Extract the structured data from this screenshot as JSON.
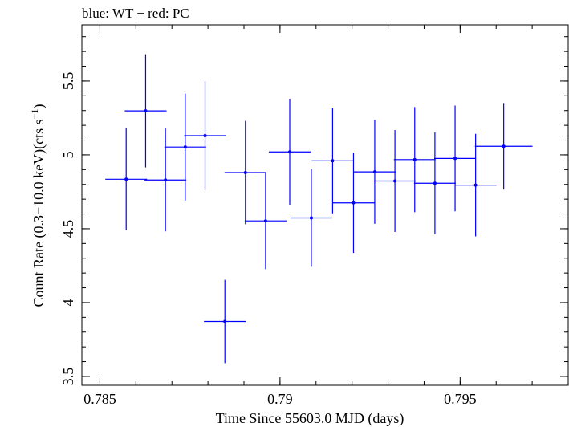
{
  "chart_data": {
    "type": "scatter",
    "title": "blue: WT − red: PC",
    "xlabel": "Time Since 55603.0 MJD (days)",
    "ylabel_main": "Count Rate (0.3−10.0 keV)(cts s",
    "ylabel_sup": "−1",
    "ylabel_close": ")",
    "xlim": [
      0.7845,
      0.798
    ],
    "ylim": [
      3.44,
      5.88
    ],
    "xticks": [
      {
        "value": 0.785,
        "label": "0.785"
      },
      {
        "value": 0.79,
        "label": "0.79"
      },
      {
        "value": 0.795,
        "label": "0.795"
      }
    ],
    "xminor_step": 0.001,
    "yticks": [
      {
        "value": 3.5,
        "label": "3.5"
      },
      {
        "value": 4,
        "label": "4"
      },
      {
        "value": 4.5,
        "label": "4.5"
      },
      {
        "value": 5,
        "label": "5"
      },
      {
        "value": 5.5,
        "label": "5.5"
      }
    ],
    "yminor_step": 0.1,
    "grid": false,
    "series_color": "#0000ff",
    "points": [
      {
        "x": 0.78573,
        "xerr": 0.00058,
        "y": 4.835,
        "yerr": 0.345
      },
      {
        "x": 0.78627,
        "xerr": 0.00058,
        "y": 5.298,
        "yerr": 0.383
      },
      {
        "x": 0.78682,
        "xerr": 0.00058,
        "y": 4.83,
        "yerr": 0.348
      },
      {
        "x": 0.78737,
        "xerr": 0.00058,
        "y": 5.053,
        "yerr": 0.362
      },
      {
        "x": 0.78792,
        "xerr": 0.00058,
        "y": 5.13,
        "yerr": 0.368
      },
      {
        "x": 0.78847,
        "xerr": 0.00058,
        "y": 3.872,
        "yerr": 0.282
      },
      {
        "x": 0.78904,
        "xerr": 0.00058,
        "y": 4.88,
        "yerr": 0.35
      },
      {
        "x": 0.7896,
        "xerr": 0.00058,
        "y": 4.553,
        "yerr": 0.327
      },
      {
        "x": 0.79027,
        "xerr": 0.00058,
        "y": 5.02,
        "yerr": 0.36
      },
      {
        "x": 0.79087,
        "xerr": 0.00058,
        "y": 4.573,
        "yerr": 0.331
      },
      {
        "x": 0.79146,
        "xerr": 0.00058,
        "y": 4.96,
        "yerr": 0.356
      },
      {
        "x": 0.79204,
        "xerr": 0.00058,
        "y": 4.675,
        "yerr": 0.339
      },
      {
        "x": 0.79263,
        "xerr": 0.00058,
        "y": 4.885,
        "yerr": 0.352
      },
      {
        "x": 0.79319,
        "xerr": 0.00058,
        "y": 4.823,
        "yerr": 0.345
      },
      {
        "x": 0.79374,
        "xerr": 0.00058,
        "y": 4.968,
        "yerr": 0.356
      },
      {
        "x": 0.7943,
        "xerr": 0.00058,
        "y": 4.808,
        "yerr": 0.345
      },
      {
        "x": 0.79486,
        "xerr": 0.00058,
        "y": 4.976,
        "yerr": 0.358
      },
      {
        "x": 0.79543,
        "xerr": 0.00058,
        "y": 4.795,
        "yerr": 0.347
      },
      {
        "x": 0.79621,
        "xerr": 0.0008,
        "y": 5.058,
        "yerr": 0.293
      }
    ]
  }
}
